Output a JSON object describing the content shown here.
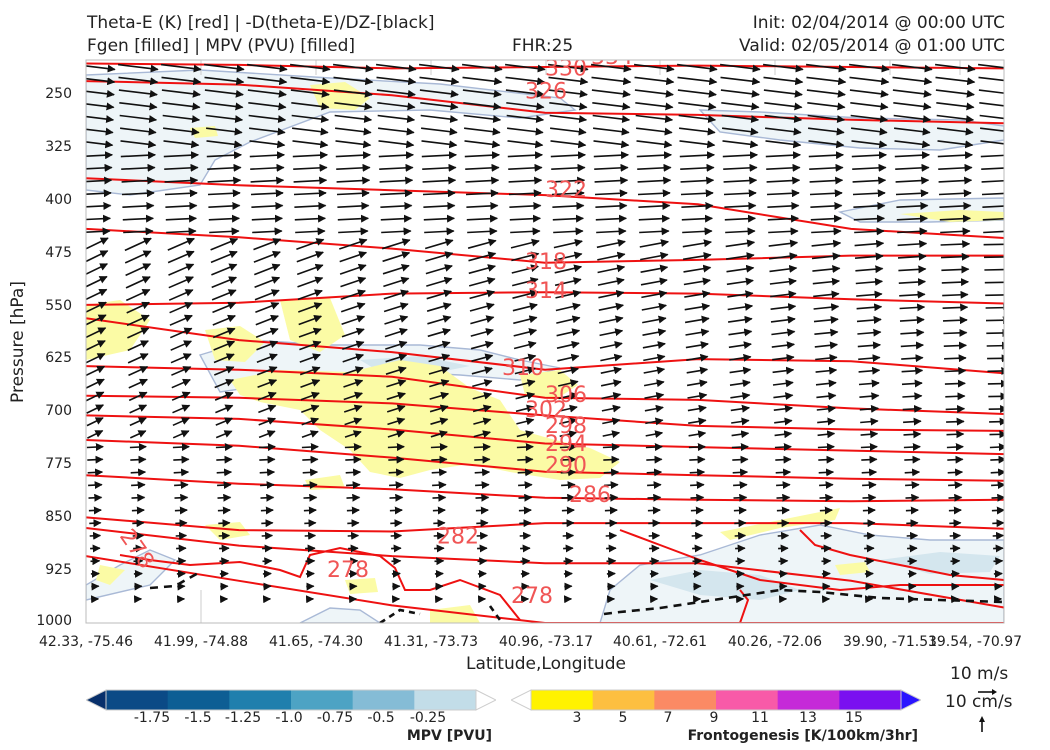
{
  "header": {
    "title_line1": "Theta-E (K) [red] | -D(theta-E)/DZ-[black]",
    "title_line2": "Fgen [filled] | MPV (PVU) [filled]",
    "fhr": "FHR:25",
    "init": "Init: 02/04/2014 @ 00:00 UTC",
    "valid": "Valid: 02/05/2014 @ 01:00 UTC"
  },
  "axes": {
    "ylabel": "Pressure [hPa]",
    "xlabel": "Latitude,Longitude",
    "y_ticks": [
      "250",
      "325",
      "400",
      "475",
      "550",
      "625",
      "700",
      "775",
      "850",
      "925",
      "1000"
    ],
    "x_ticks": [
      "42.33, -75.46",
      "41.99, -74.88",
      "41.65, -74.30",
      "41.31, -73.73",
      "40.96, -73.17",
      "40.61, -72.61",
      "40.26, -72.06",
      "39.90, -71.51",
      "39.54, -70.97"
    ]
  },
  "wind_scale": {
    "horizontal": "10 m/s",
    "vertical": "10 cm/s"
  },
  "colorbars": {
    "mpv": {
      "title": "MPV [PVU]",
      "ticks": [
        "-1.75",
        "-1.5",
        "-1.25",
        "-1.0",
        "-0.75",
        "-0.5",
        "-0.25"
      ],
      "colors": [
        "#08306b",
        "#0b4a86",
        "#0d5e94",
        "#1f7fad",
        "#4da3c4",
        "#85bcd6",
        "#c2dde8",
        "#ffffff"
      ]
    },
    "fgen": {
      "title": "Frontogenesis [K/100km/3hr]",
      "ticks": [
        "3",
        "5",
        "7",
        "9",
        "11",
        "13",
        "15"
      ],
      "colors": [
        "#ffffff",
        "#fff200",
        "#fdbf40",
        "#fb8a64",
        "#f85aa8",
        "#c52ad8",
        "#7a10f0",
        "#2a14ff"
      ]
    }
  },
  "chart_data": {
    "type": "contour",
    "y_axis": {
      "label": "Pressure [hPa]",
      "range": [
        200,
        1000
      ],
      "inverted": true
    },
    "x_axis": {
      "label": "Latitude,Longitude"
    },
    "theta_e_contours": [
      {
        "label": "330",
        "y": [
          205,
          207,
          212,
          210,
          208,
          210,
          212
        ]
      },
      {
        "label": "326",
        "y": [
          230,
          235,
          250,
          275,
          278,
          285,
          290
        ]
      },
      {
        "label": "322",
        "y": [
          368,
          378,
          385,
          392,
          405,
          440,
          453
        ]
      },
      {
        "label": "318",
        "y": [
          440,
          452,
          468,
          488,
          484,
          478,
          478
        ]
      },
      {
        "label": "314",
        "y": [
          548,
          545,
          532,
          530,
          532,
          540,
          546
        ]
      },
      {
        "label": "310",
        "y": [
          567,
          598,
          615,
          640,
          625,
          628,
          645
        ]
      },
      {
        "label": "306",
        "y": [
          635,
          640,
          650,
          680,
          683,
          695,
          703
        ]
      },
      {
        "label": "302",
        "y": [
          677,
          680,
          688,
          705,
          720,
          725,
          727
        ]
      },
      {
        "label": "298",
        "y": [
          705,
          710,
          725,
          745,
          750,
          755,
          760
        ]
      },
      {
        "label": "294",
        "y": [
          740,
          748,
          765,
          785,
          790,
          795,
          798
        ]
      },
      {
        "label": "290",
        "y": [
          790,
          802,
          810,
          822,
          825,
          827,
          825
        ]
      },
      {
        "label": "286",
        "y": [
          850,
          868,
          870,
          858,
          858,
          858,
          866
        ]
      },
      {
        "label": "282",
        "y": [
          865,
          890,
          905,
          915,
          915,
          940,
          978
        ]
      },
      {
        "label": "278",
        "y": [
          905,
          940,
          975,
          1000,
          1000,
          1000,
          1000
        ]
      }
    ],
    "legend": [
      "Theta-E (K) [red]",
      "-D(theta-E)/DZ-[black]",
      "Fgen [filled]",
      "MPV (PVU) [filled]"
    ]
  }
}
